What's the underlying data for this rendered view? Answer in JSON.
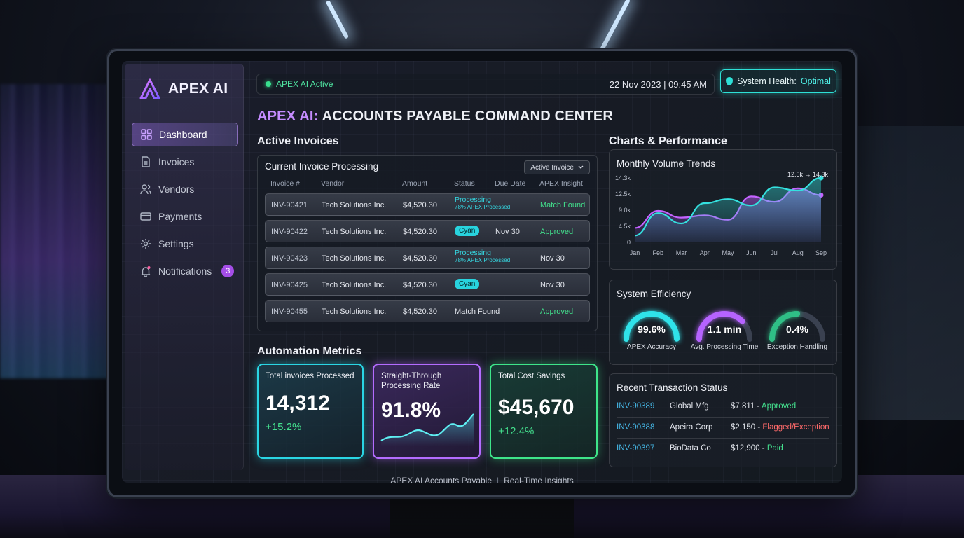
{
  "brand": {
    "name": "APEX AI"
  },
  "sidebar": {
    "items": [
      {
        "label": "Dashboard",
        "icon": "grid-icon"
      },
      {
        "label": "Invoices",
        "icon": "document-icon"
      },
      {
        "label": "Vendors",
        "icon": "users-icon"
      },
      {
        "label": "Payments",
        "icon": "card-icon"
      },
      {
        "label": "Settings",
        "icon": "gear-icon"
      },
      {
        "label": "Notifications",
        "icon": "bell-icon",
        "badge": "3"
      }
    ]
  },
  "topbar": {
    "status": "APEX AI Active",
    "datetime": "22 Nov 2023 | 09:45 AM",
    "health_label": "System Health:",
    "health_value": "Optimal"
  },
  "page": {
    "title_prefix": "APEX AI:",
    "title_rest": "ACCOUNTS PAYABLE COMMAND CENTER"
  },
  "active_invoices": {
    "section_title": "Active Invoices",
    "panel_title": "Current Invoice Processing",
    "dropdown_value": "Active Invoice",
    "columns": [
      "Invoice #",
      "Vendor",
      "Amount",
      "Status",
      "Due Date",
      "APEX Insight"
    ],
    "rows": [
      {
        "id": "INV-90421",
        "vendor": "Tech Solutions Inc.",
        "amount": "$4,520.30",
        "status": "Processing",
        "status_sub": "78% APEX Processed",
        "due": "",
        "insight": "Match Found"
      },
      {
        "id": "INV-90422",
        "vendor": "Tech Solutions Inc.",
        "amount": "$4,520.30",
        "status": "Cyan",
        "status_sub": "",
        "due": "Nov 30",
        "insight": "Approved"
      },
      {
        "id": "INV-90423",
        "vendor": "Tech Solutions Inc.",
        "amount": "$4,520.30",
        "status": "Processing",
        "status_sub": "78% APEX Processed",
        "due": "Nov 30",
        "insight": ""
      },
      {
        "id": "INV-90425",
        "vendor": "Tech Solutions Inc.",
        "amount": "$4,520.30",
        "status": "Cyan",
        "status_sub": "",
        "due": "Nov 30",
        "insight": ""
      },
      {
        "id": "INV-90455",
        "vendor": "Tech Solutions Inc.",
        "amount": "$4,520.30",
        "status": "Match Found",
        "status_sub": "",
        "due": "",
        "insight": "Approved"
      }
    ]
  },
  "automation": {
    "section_title": "Automation Metrics",
    "cards": [
      {
        "label": "Total invoices Processed",
        "value": "14,312",
        "delta": "+15.2%",
        "color": "#2ad6e4"
      },
      {
        "label": "Straight-Through Processing Rate",
        "value": "91.8%",
        "delta": "",
        "color": "#b46cff"
      },
      {
        "label": "Total Cost Savings",
        "value": "$45,670",
        "delta": "+12.4%",
        "color": "#3ee58a"
      }
    ]
  },
  "charts": {
    "section_title": "Charts & Performance",
    "trend_title": "Monthly Volume Trends",
    "annotation": "12.5k → 14.3k"
  },
  "chart_data": {
    "type": "area",
    "title": "Monthly Volume Trends",
    "categories": [
      "Jan",
      "Feb",
      "Mar",
      "Apr",
      "May",
      "Jun",
      "Jul",
      "Aug",
      "Sep"
    ],
    "y_ticks": [
      "14.3k",
      "12.5k",
      "9.0k",
      "4.5k",
      "0"
    ],
    "ylim": [
      0,
      14.3
    ],
    "series": [
      {
        "values": [
          1.5,
          6.5,
          4.2,
          8.7,
          9.6,
          8.2,
          12.2,
          11.5,
          14.3
        ],
        "color": "#34e1df"
      },
      {
        "values": [
          3.2,
          7.0,
          5.5,
          6.0,
          5.0,
          10.2,
          9.0,
          12.0,
          10.5
        ],
        "color": "#c463ff"
      }
    ],
    "annotation": "12.5k → 14.3k",
    "grid": false
  },
  "efficiency": {
    "title": "System Efficiency",
    "gauges": [
      {
        "value": "99.6%",
        "label": "APEX Accuracy",
        "fraction": 0.996,
        "color": "#2fe3ea"
      },
      {
        "value": "1.1 min",
        "label": "Avg. Processing Time",
        "fraction": 0.75,
        "color": "#b663ff"
      },
      {
        "value": "0.4%",
        "label": "Exception Handling",
        "fraction": 0.5,
        "color": "#2fbf86"
      }
    ]
  },
  "transactions": {
    "title": "Recent Transaction Status",
    "rows": [
      {
        "id": "INV-90389",
        "vendor": "Global Mfg",
        "amount": "$7,811 -",
        "status": "Approved",
        "status_color": "#44e08e"
      },
      {
        "id": "INV-90388",
        "vendor": "Apeira Corp",
        "amount": "$2,150 -",
        "status": "Flagged/Exception",
        "status_color": "#ff6a6a"
      },
      {
        "id": "INV-90397",
        "vendor": "BioData Co",
        "amount": "$12,900 -",
        "status": "Paid",
        "status_color": "#44e08e"
      }
    ]
  },
  "footer": {
    "left": "APEX AI Accounts Payable",
    "right": "Real-Time Insights"
  }
}
